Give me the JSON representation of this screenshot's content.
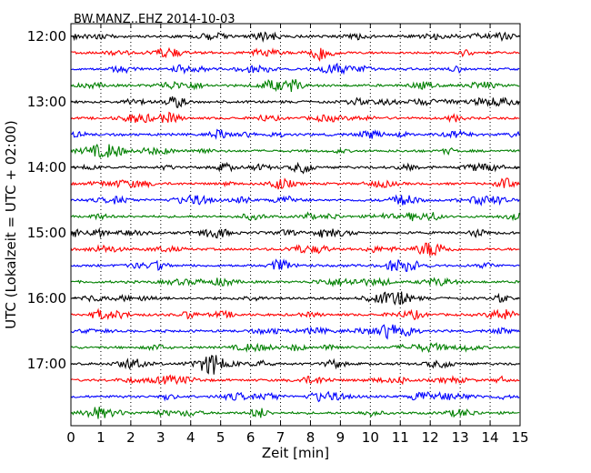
{
  "chart_data": {
    "type": "line",
    "title": "BW.MANZ..EHZ 2014-10-03",
    "xlabel": "Zeit  [min]",
    "ylabel": "UTC (Lokalzeit = UTC + 02:00)",
    "xlim": [
      0,
      15
    ],
    "x_ticks": [
      "0",
      "1",
      "2",
      "3",
      "4",
      "5",
      "6",
      "7",
      "8",
      "9",
      "10",
      "11",
      "12",
      "13",
      "14",
      "15"
    ],
    "y_tick_labels": [
      "12:00",
      "13:00",
      "14:00",
      "15:00",
      "16:00",
      "17:00"
    ],
    "traces_per_hour": 4,
    "trace_interval_minutes": 15,
    "first_trace_start": "12:00",
    "trace_count": 24,
    "trace_colors": [
      "#000000",
      "#ff0000",
      "#0000ff",
      "#008000"
    ],
    "grid": "vertical dotted at each minute"
  }
}
